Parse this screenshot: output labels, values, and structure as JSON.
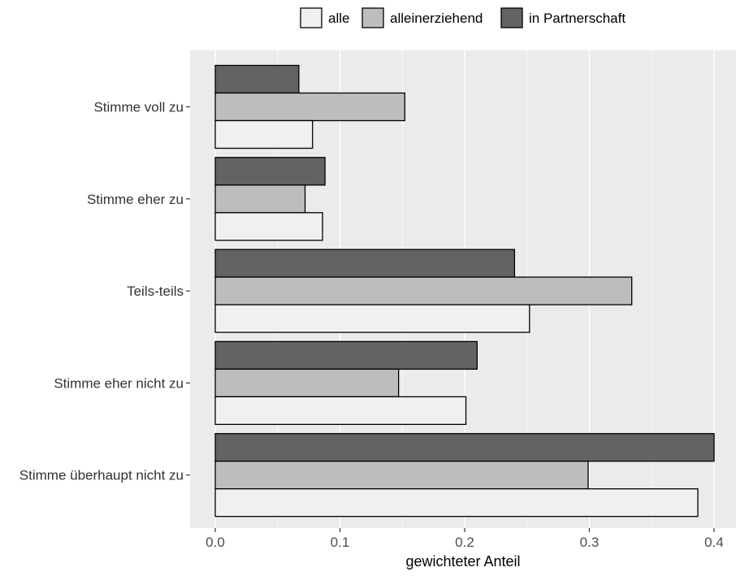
{
  "chart_data": {
    "type": "bar",
    "orientation": "horizontal",
    "categories": [
      "Stimme voll zu",
      "Stimme eher zu",
      "Teils-teils",
      "Stimme eher nicht zu",
      "Stimme überhaupt nicht zu"
    ],
    "series": [
      {
        "name": "alle",
        "color": "#f0f0f0",
        "values": [
          0.078,
          0.086,
          0.252,
          0.201,
          0.387
        ]
      },
      {
        "name": "alleinerziehend",
        "color": "#bdbdbd",
        "values": [
          0.152,
          0.072,
          0.334,
          0.147,
          0.299
        ]
      },
      {
        "name": "in Partnerschaft",
        "color": "#636363",
        "values": [
          0.067,
          0.088,
          0.24,
          0.21,
          0.4
        ]
      }
    ],
    "xlabel": "gewichteter Anteil",
    "ylabel": "",
    "xlim": [
      0,
      0.4
    ],
    "xticks": [
      0,
      0.1,
      0.2,
      0.3,
      0.4
    ],
    "xtick_labels": [
      "0.0",
      "0.1",
      "0.2",
      "0.3",
      "0.4"
    ],
    "grid": true,
    "legend_position": "top",
    "panel_background": "#ebebeb"
  }
}
